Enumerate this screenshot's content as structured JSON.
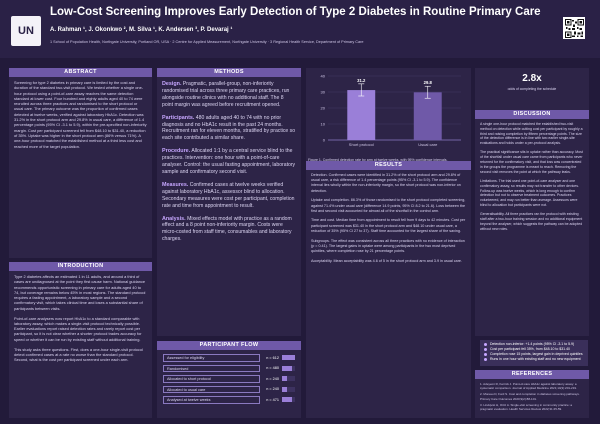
{
  "header": {
    "logo_text": "UN",
    "title": "Low-Cost Screening Improves Early Detection of Type 2 Diabetes in Routine Primary Care",
    "authors": "A. Rahman ¹, J. Okonkwo ², M. Silva ¹, K. Andersen ³, P. Devaraj ¹",
    "affiliations": "1 School of Population Health, Northgate University, Portland OR, USA · 2 Centre for Applied Measurement, Northgate University · 3 Regional Health Service, Department of Primary Care"
  },
  "abstract": {
    "heading": "ABSTRACT",
    "text": "Screening for type 2 diabetes in primary care is limited by the cost and duration of the standard two-visit protocol. We tested whether a single one-hour protocol using a point-of-care assay reaches the same detection standard at lower cost. Four hundred and eighty adults aged 40 to 74 were recruited across three practices and randomised to the short protocol or usual care. The primary outcome was the proportion of confirmed cases detected at twelve weeks, verified against laboratory HbA1c. Detection was 31.2% in the short protocol arm and 29.8% in usual care, a difference of 1.4 percentage points (95% CI -3.1 to 5.9), within the pre-specified non-inferiority margin. Cost per participant screened fell from $48.10 to $31.40, a reduction of 35%. Uptake was higher in the short protocol arm (86% versus 71%). A one-hour protocol matched the established method at a third less cost and reached more of the target population."
  },
  "introduction": {
    "heading": "INTRODUCTION",
    "paragraphs": [
      "Type 2 diabetes affects an estimated 1 in 11 adults, and around a third of cases are undiagnosed at the point they first cause harm. National guidance recommends opportunistic screening in primary care for adults aged 40 to 74, but coverage remains below 45% in most regions. The standard protocol requires a fasting appointment, a laboratory sample and a second confirmatory visit, which takes clinical time and loses a substantial share of participants between visits.",
      "Point-of-care analysers now report HbA1c to a standard comparable with laboratory assay, which makes a single-visit protocol technically possible. Earlier evaluations report raised detection rates and rarely report cost per participant, so it is not clear whether a shorter protocol trades accuracy for speed or whether it can be run by existing staff without additional training.",
      "This study asks three questions. First, does a one-hour single-visit protocol detect confirmed cases at a rate no worse than the standard protocol. Second, what is the cost per participant screened under each arm."
    ]
  },
  "methods": {
    "heading": "METHODS",
    "items": [
      {
        "label": "Design.",
        "text": "Pragmatic, parallel-group, non-inferiority randomised trial across three primary care practices, run alongside routine clinics with no additional staff. The 8 point margin was agreed before recruitment opened."
      },
      {
        "label": "Participants.",
        "text": "480 adults aged 40 to 74 with no prior diagnosis and no HbA1c result in the past 24 months. Recruitment ran for eleven months, stratified by practice so each site contributed a similar share."
      },
      {
        "label": "Procedure.",
        "text": "Allocated 1:1 by a central service blind to the practices. Intervention: one hour with a point-of-care analyser. Control: the usual fasting appointment, laboratory sample and confirmatory second visit."
      },
      {
        "label": "Measures.",
        "text": "Confirmed cases at twelve weeks verified against laboratory HbA1c, assessor blind to allocation. Secondary measures were cost per participant, completion rate and time from appointment to result."
      },
      {
        "label": "Analysis.",
        "text": "Mixed effects model with practice as a random effect and a 8 point non-inferiority margin. Costs were micro-costed from staff time, consumables and laboratory charges."
      }
    ]
  },
  "flow": {
    "heading": "PARTICIPANT FLOW",
    "rows": [
      {
        "label": "Assessed for eligibility",
        "n": "n = 612",
        "fraction": 1.0
      },
      {
        "label": "Randomised",
        "n": "n = 480",
        "fraction": 0.78
      },
      {
        "label": "Allocated to short protocol",
        "n": "n = 240",
        "fraction": 0.39
      },
      {
        "label": "Allocated to usual care",
        "n": "n = 240",
        "fraction": 0.39
      },
      {
        "label": "Analysed at twelve weeks",
        "n": "n = 471",
        "fraction": 0.77
      }
    ]
  },
  "figure": {
    "caption": "Figure 1. Confirmed detection rate by arm at twelve weeks, with 95% confidence intervals.",
    "source": "Source: Trial dataset, 2023."
  },
  "stat": {
    "value": "2.8x",
    "label": "odds of completing the schedule"
  },
  "results": {
    "heading": "RESULTS",
    "paragraphs": [
      "Detection. Confirmed cases were identified in 31.2% of the short protocol arm and 29.8% of usual care, a risk difference of 1.4 percentage points (95% CI -3.1 to 5.9). The confidence interval lies wholly within the non-inferiority margin, so the short protocol was non-inferior on detection.",
      "Uptake and completion. 86.3% of those randomised to the short protocol completed screening, against 71.4% under usual care (difference 14.9 points, 95% CI 8.2 to 21.6). Loss between the first and second visit accounted for almost all of the shortfall in the control arm.",
      "Time and cost. Median time from appointment to result fell from 9 days to 42 minutes. Cost per participant screened was $31.40 in the short protocol arm and $48.10 under usual care, a reduction of 35% (95% CI 27 to 37). Staff time accounted for the largest share of the saving.",
      "Subgroups. The effect was consistent across all three practices with no evidence of interaction (p = 0.41). The largest gains in uptake were among participants in the two most deprived quintiles, where completion rose by 21 percentage points.",
      "Acceptability. Mean acceptability was 4.6 of 5 in the short protocol arm and 3.9 in usual care."
    ]
  },
  "discussion": {
    "heading": "DISCUSSION",
    "paragraphs": [
      "A single one-hour protocol matched the established two-visit method on detection while cutting cost per participant by roughly a third and raising completion by fifteen percentage points. The size of the detection difference is in line with two earlier single-site evaluations and holds under a per-protocol analysis.",
      "The practical significance sits in uptake rather than accuracy. Most of the shortfall under usual care came from participants who never returned for the confirmatory visit, and that loss was concentrated in the groups the programme is meant to reach. Removing the second visit removes the point at which the pathway leaks.",
      "Limitations. The trial used one point-of-care analyser and one confirmatory assay, so results may not transfer to other devices. Follow-up was twelve weeks, which is long enough to confirm detection but not to observe treatment outcomes. Practices volunteered, and may run better than average. Assessors were blind to allocation but participants were not.",
      "Generalisability. All three practices ran the protocol with existing staff after a two-hour training session and no additional equipment beyond the analyser, which suggests the pathway can be adopted without new roles."
    ]
  },
  "key_points": [
    "Detection non-inferior: +1.4 points (95% CI -3.1 to 5.9)",
    "Cost per participant fell 35%, from $48.10 to $31.40",
    "Completion rose 15 points, largest gain in deprived quintiles",
    "Runs in one hour with existing staff and no new equipment"
  ],
  "references": {
    "heading": "REFERENCES",
    "items": [
      "1. Adeyemi R, Kerrick J. Point-of-care HbA1c against laboratory assay: a systematic comparison. Journal of Applied Medicine 2021;14(3):201-219.",
      "2. Moreau D, Ford S. Cost and completion in diabetes screening pathways. Primary Care Outcomes 2020;9(2):88-101.",
      "3. Lindqvist H, Ortiz A. Single-visit screening in community practice: a pragmatic evaluation. Health Services Review 2022;31:45-59."
    ]
  },
  "chart_data": {
    "type": "bar",
    "categories": [
      "Short protocol",
      "Usual care"
    ],
    "values": [
      31.2,
      29.8
    ],
    "ci_low": [
      27.5,
      26.1
    ],
    "ci_high": [
      35.1,
      33.6
    ],
    "title": "",
    "xlabel": "",
    "ylabel": "",
    "ylim": [
      0,
      40
    ],
    "colors": [
      "#9a7fd8",
      "#6f59a8"
    ]
  }
}
